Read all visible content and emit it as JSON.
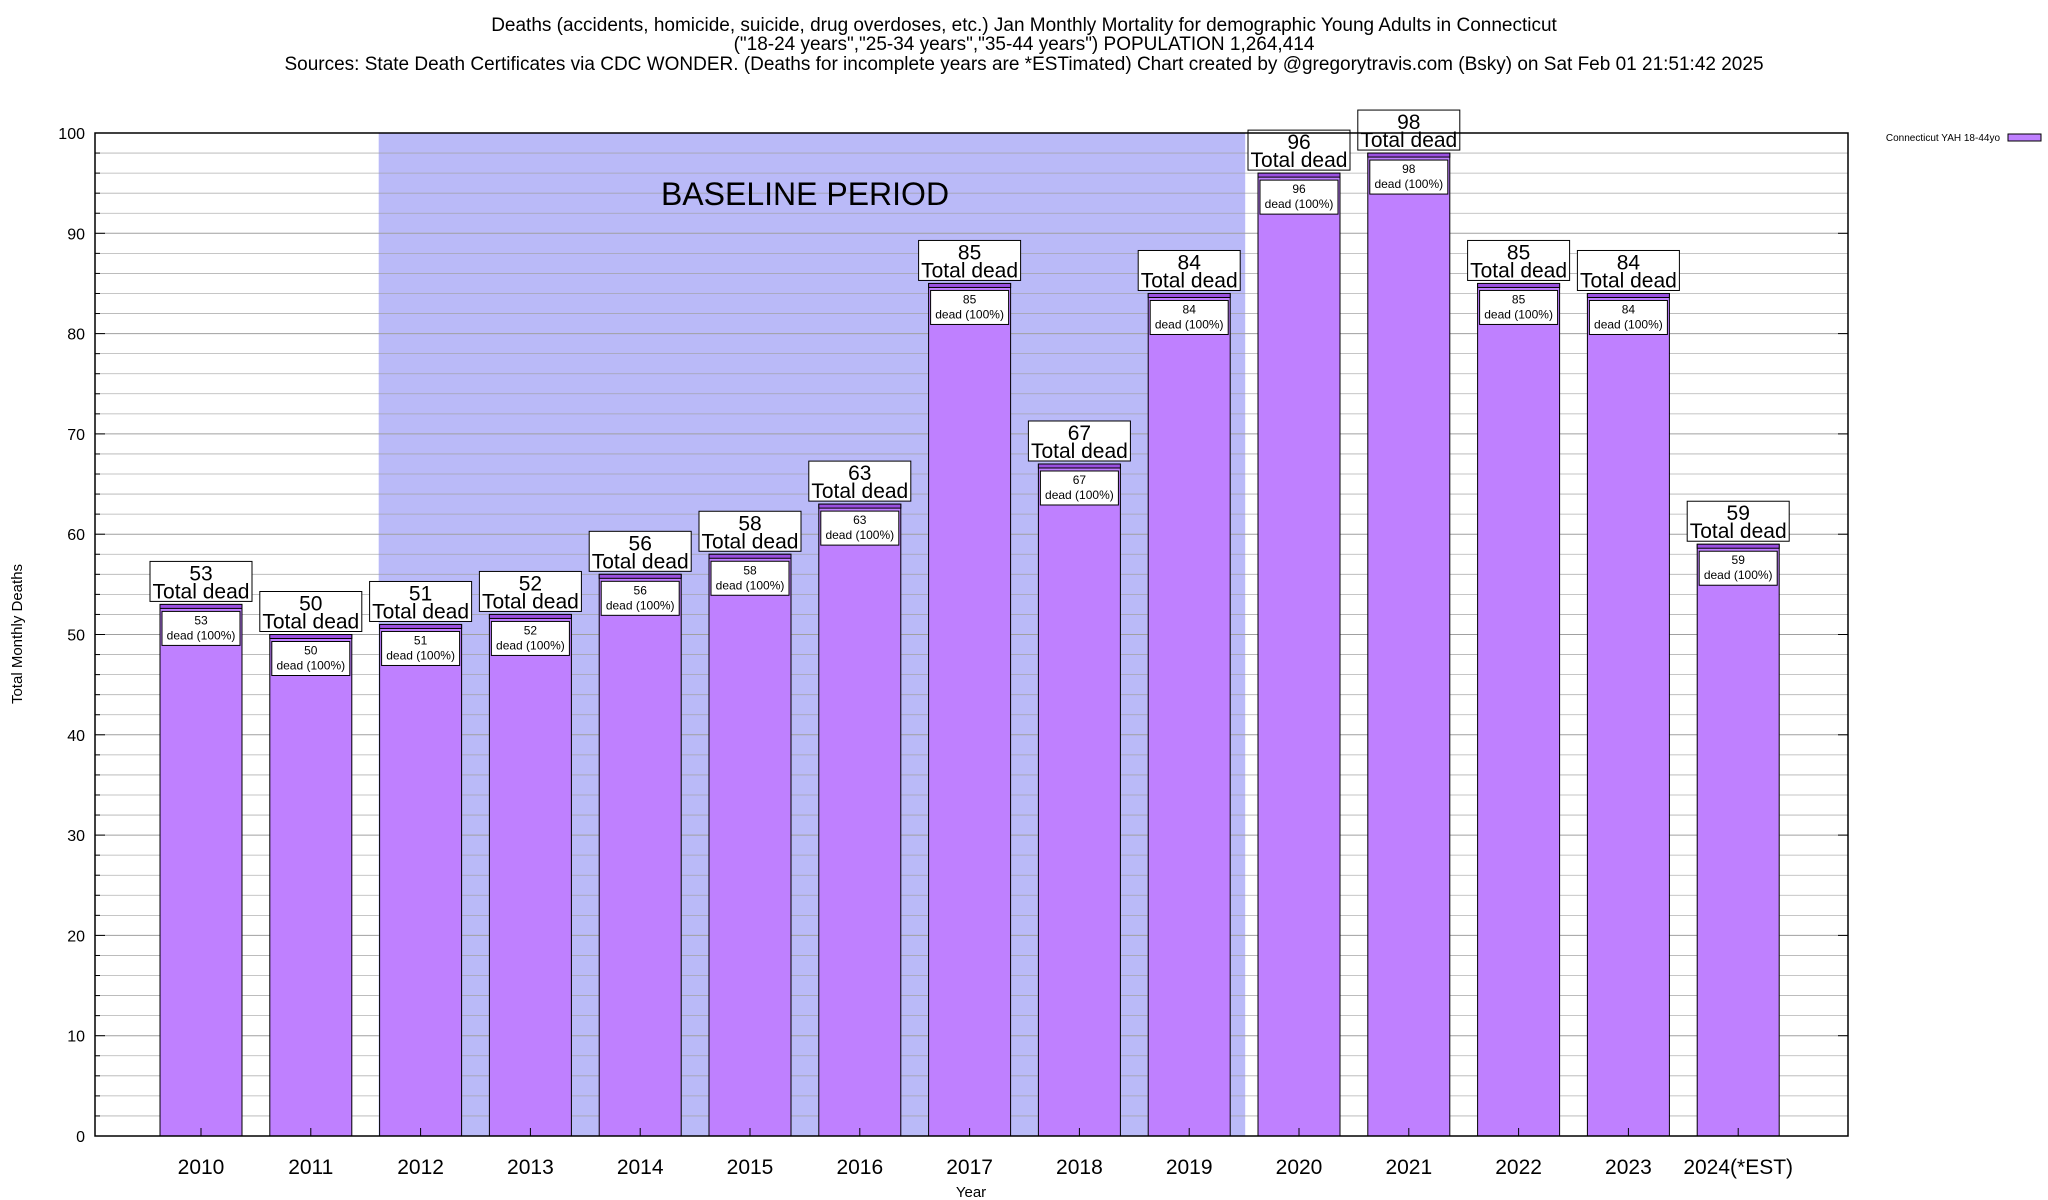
{
  "title": {
    "line1": "Deaths (accidents, homicide, suicide, drug overdoses, etc.) Jan Monthly Mortality for demographic Young Adults in Connecticut",
    "line2": "(\"18-24 years\",\"25-34 years\",\"35-44 years\") POPULATION 1,264,414",
    "line3": "Sources: State Death Certificates via CDC WONDER. (Deaths for incomplete years are *ESTimated)               Chart created by @gregorytravis.com (Bsky) on Sat Feb 01 21:51:42 2025"
  },
  "baseline_label": "BASELINE PERIOD",
  "legend": {
    "label": "Connecticut YAH 18-44yo"
  },
  "colors": {
    "bar_fill": "#bf80ff",
    "bar_cap": "#9a4fe0",
    "baseline_band": "#babaf8",
    "grid": "#a0a0a0"
  },
  "chart_data": {
    "type": "bar",
    "xlabel": "Year",
    "ylabel": "Total Monthly Deaths",
    "ylim": [
      0,
      100
    ],
    "yticks": [
      0,
      10,
      20,
      30,
      40,
      50,
      60,
      70,
      80,
      90,
      100
    ],
    "grid": true,
    "legend_position": "top-right",
    "categories": [
      "2010",
      "2011",
      "2012",
      "2013",
      "2014",
      "2015",
      "2016",
      "2017",
      "2018",
      "2019",
      "2020",
      "2021",
      "2022",
      "2023",
      "2024(*EST)"
    ],
    "series": [
      {
        "name": "Connecticut YAH 18-44yo",
        "values": [
          53,
          50,
          51,
          52,
          56,
          58,
          63,
          85,
          67,
          84,
          96,
          98,
          85,
          84,
          59
        ]
      }
    ],
    "baseline_period": [
      "2012",
      "2019"
    ],
    "total_label": "Total dead",
    "segment_label_suffix": "dead (100%)"
  }
}
